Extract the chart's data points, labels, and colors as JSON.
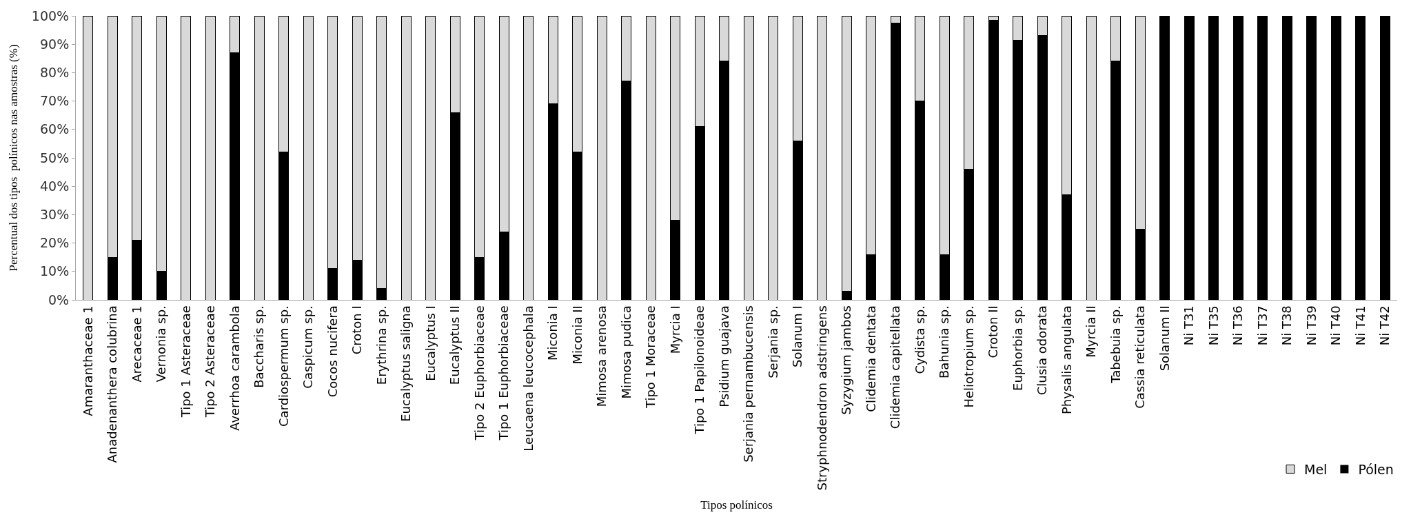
{
  "chart_data": {
    "type": "bar",
    "stacked": true,
    "xlabel": "Tipos polínicos",
    "ylabel": "Percentual dos tipos  polínicos nas amostras (%)",
    "categories": [
      "Amaranthaceae 1",
      "Anadenanthera colubrina",
      "Arecaceae 1",
      "Vernonia sp.",
      "Tipo 1 Asteraceae",
      "Tipo 2 Asteraceae",
      "Averrhoa carambola",
      "Baccharis sp.",
      "Cardiospermum sp.",
      "Caspicum sp.",
      "Cocos nucifera",
      "Croton I",
      "Erythrina sp.",
      "Eucalyptus saligna",
      "Eucalyptus I",
      "Eucalyptus II",
      "Tipo 2 Euphorbiaceae",
      "Tipo 1 Euphorbiaceae",
      "Leucaena leucocephala",
      "Miconia I",
      "Miconia II",
      "Mimosa arenosa",
      "Mimosa pudica",
      "Tipo 1 Moraceae",
      "Myrcia I",
      "Tipo 1 Papilonoideae",
      "Psidium guajava",
      "Serjania pernambucensis",
      "Serjania sp.",
      "Solanum I",
      "Stryphnodendron adstringens",
      "Syzygium jambos",
      "Clidemia dentata",
      "Clidemia capitellata",
      "Cydista sp.",
      "Bahunia sp.",
      "Heliotropium sp.",
      "Croton II",
      "Euphorbia sp.",
      "Clusia odorata",
      "Physalis angulata",
      "Myrcia II",
      "Tabebuia sp.",
      "Cassia reticulata",
      "Solanum II",
      "Ni T31",
      "Ni T35",
      "Ni T36",
      "Ni T37",
      "Ni T38",
      "Ni T39",
      "Ni T40",
      "Ni T41",
      "Ni T42"
    ],
    "series": [
      {
        "name": "Pólen",
        "color": "#000000",
        "values": [
          0,
          15,
          21,
          10,
          0,
          0,
          87,
          0,
          52,
          0,
          11,
          14,
          4,
          0,
          0,
          66,
          15,
          24,
          0,
          69,
          52,
          0,
          77,
          0,
          28,
          61,
          84,
          0,
          0,
          56,
          0,
          3,
          16,
          97.5,
          70,
          16,
          46,
          98.5,
          91.5,
          93,
          37,
          0,
          84,
          25,
          100,
          100,
          100,
          100,
          100,
          100,
          100,
          100,
          100,
          100
        ]
      },
      {
        "name": "Mel",
        "color": "#d9d9d9",
        "values": [
          100,
          85,
          79,
          90,
          100,
          100,
          13,
          100,
          48,
          100,
          89,
          86,
          96,
          100,
          100,
          34,
          85,
          76,
          100,
          31,
          48,
          100,
          23,
          100,
          72,
          39,
          16,
          100,
          100,
          44,
          100,
          97,
          84,
          2.5,
          30,
          84,
          54,
          1.5,
          8.5,
          7,
          63,
          100,
          16,
          75,
          0,
          0,
          0,
          0,
          0,
          0,
          0,
          0,
          0,
          0
        ]
      }
    ],
    "ylim": [
      0,
      100
    ],
    "yticks": [
      {
        "value": 0,
        "label": "0%"
      },
      {
        "value": 10,
        "label": "10%"
      },
      {
        "value": 20,
        "label": "20%"
      },
      {
        "value": 30,
        "label": "30%"
      },
      {
        "value": 40,
        "label": "40%"
      },
      {
        "value": 50,
        "label": "50%"
      },
      {
        "value": 60,
        "label": "60%"
      },
      {
        "value": 70,
        "label": "70%"
      },
      {
        "value": 80,
        "label": "80%"
      },
      {
        "value": 90,
        "label": "90%"
      },
      {
        "value": 100,
        "label": "100%"
      }
    ],
    "grid": false,
    "legend": "bottom right"
  }
}
